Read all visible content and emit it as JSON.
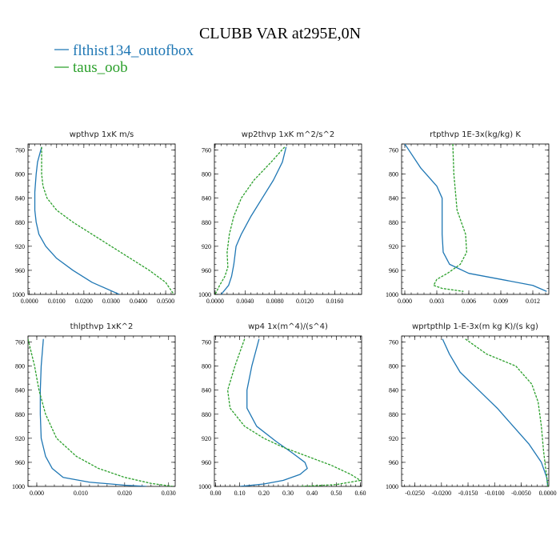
{
  "figure": {
    "title": "CLUBB VAR at295E,0N",
    "legend": [
      {
        "label": "flthist134_outofbox",
        "color": "#1f77b4",
        "dash": "solid"
      },
      {
        "label": "taus_oob",
        "color": "#2ca02c",
        "dash": "dashed"
      }
    ]
  },
  "chart_data": [
    {
      "type": "line",
      "title": "wpthvp  1xK m/s",
      "xlim": [
        -0.0005,
        0.0535
      ],
      "ylim": [
        1000,
        750
      ],
      "xticks": [
        0,
        0.01,
        0.02,
        0.03,
        0.04,
        0.05
      ],
      "xtick_labels": [
        "0.0000",
        "0.0100",
        "0.0200",
        "0.0300",
        "0.0400",
        "0.0500"
      ],
      "yticks": [
        760,
        800,
        840,
        880,
        920,
        960,
        1000
      ],
      "series": [
        {
          "name": "flthist134_outofbox",
          "points": [
            [
              0.0045,
              755
            ],
            [
              0.003,
              780
            ],
            [
              0.0025,
              800
            ],
            [
              0.002,
              830
            ],
            [
              0.002,
              860
            ],
            [
              0.0025,
              880
            ],
            [
              0.0035,
              900
            ],
            [
              0.006,
              920
            ],
            [
              0.01,
              940
            ],
            [
              0.016,
              960
            ],
            [
              0.023,
              980
            ],
            [
              0.033,
              1000
            ]
          ]
        },
        {
          "name": "taus_oob",
          "points": [
            [
              0.0045,
              755
            ],
            [
              0.0045,
              780
            ],
            [
              0.0045,
              800
            ],
            [
              0.005,
              820
            ],
            [
              0.0065,
              840
            ],
            [
              0.01,
              860
            ],
            [
              0.016,
              880
            ],
            [
              0.023,
              900
            ],
            [
              0.03,
              920
            ],
            [
              0.037,
              940
            ],
            [
              0.044,
              960
            ],
            [
              0.05,
              980
            ],
            [
              0.053,
              1000
            ]
          ]
        }
      ]
    },
    {
      "type": "line",
      "title": "wp2thvp  1xK m^2/s^2",
      "xlim": [
        -0.0001,
        0.0196
      ],
      "ylim": [
        1000,
        750
      ],
      "xticks": [
        0,
        0.004,
        0.008,
        0.012,
        0.016
      ],
      "xtick_labels": [
        "0.0000",
        "0.0040",
        "0.0080",
        "0.0120",
        "0.0160"
      ],
      "yticks": [
        760,
        800,
        840,
        880,
        920,
        960,
        1000
      ],
      "series": [
        {
          "name": "flthist134_outofbox",
          "points": [
            [
              0.0095,
              755
            ],
            [
              0.009,
              780
            ],
            [
              0.0078,
              810
            ],
            [
              0.0063,
              840
            ],
            [
              0.0048,
              870
            ],
            [
              0.0035,
              900
            ],
            [
              0.0028,
              920
            ],
            [
              0.0025,
              950
            ],
            [
              0.0022,
              970
            ],
            [
              0.0018,
              985
            ],
            [
              0.0008,
              1000
            ]
          ]
        },
        {
          "name": "taus_oob",
          "points": [
            [
              0.0093,
              755
            ],
            [
              0.0075,
              780
            ],
            [
              0.0052,
              810
            ],
            [
              0.0035,
              840
            ],
            [
              0.0025,
              870
            ],
            [
              0.0019,
              900
            ],
            [
              0.0016,
              930
            ],
            [
              0.0017,
              955
            ],
            [
              0.0013,
              970
            ],
            [
              0.0006,
              985
            ],
            [
              0.0,
              1000
            ]
          ]
        }
      ]
    },
    {
      "type": "line",
      "title": "rtpthvp  1E-3x(kg/kg) K",
      "xlim": [
        -0.0003,
        0.0135
      ],
      "ylim": [
        1000,
        750
      ],
      "xticks": [
        0,
        0.003,
        0.006,
        0.009,
        0.012
      ],
      "xtick_labels": [
        "0.000",
        "0.003",
        "0.006",
        "0.009",
        "0.012"
      ],
      "yticks": [
        760,
        800,
        840,
        880,
        920,
        960,
        1000
      ],
      "series": [
        {
          "name": "flthist134_outofbox",
          "points": [
            [
              0.0,
              750
            ],
            [
              0.0015,
              790
            ],
            [
              0.003,
              820
            ],
            [
              0.0035,
              840
            ],
            [
              0.0035,
              900
            ],
            [
              0.0036,
              930
            ],
            [
              0.0042,
              950
            ],
            [
              0.006,
              965
            ],
            [
              0.009,
              975
            ],
            [
              0.012,
              985
            ],
            [
              0.0133,
              995
            ]
          ]
        },
        {
          "name": "taus_oob",
          "points": [
            [
              0.0045,
              750
            ],
            [
              0.0046,
              800
            ],
            [
              0.0049,
              860
            ],
            [
              0.0057,
              900
            ],
            [
              0.0058,
              930
            ],
            [
              0.0052,
              950
            ],
            [
              0.004,
              965
            ],
            [
              0.003,
              975
            ],
            [
              0.0027,
              985
            ],
            [
              0.0035,
              990
            ],
            [
              0.0055,
              995
            ]
          ]
        }
      ]
    },
    {
      "type": "line",
      "title": "thlpthvp  1xK^2",
      "xlim": [
        -0.002,
        0.0315
      ],
      "ylim": [
        1000,
        750
      ],
      "xticks": [
        0,
        0.01,
        0.02,
        0.03
      ],
      "xtick_labels": [
        "0.000",
        "0.010",
        "0.020",
        "0.030"
      ],
      "yticks": [
        760,
        800,
        840,
        880,
        920,
        960,
        1000
      ],
      "series": [
        {
          "name": "flthist134_outofbox",
          "points": [
            [
              0.0015,
              755
            ],
            [
              0.001,
              800
            ],
            [
              0.0008,
              840
            ],
            [
              0.0008,
              880
            ],
            [
              0.001,
              920
            ],
            [
              0.002,
              950
            ],
            [
              0.0035,
              970
            ],
            [
              0.006,
              985
            ],
            [
              0.012,
              993
            ],
            [
              0.02,
              998
            ],
            [
              0.025,
              1000
            ]
          ]
        },
        {
          "name": "taus_oob",
          "points": [
            [
              -0.002,
              755
            ],
            [
              -0.0005,
              800
            ],
            [
              0.0005,
              840
            ],
            [
              0.002,
              880
            ],
            [
              0.0045,
              920
            ],
            [
              0.009,
              950
            ],
            [
              0.014,
              970
            ],
            [
              0.02,
              985
            ],
            [
              0.026,
              995
            ],
            [
              0.031,
              1000
            ]
          ]
        }
      ]
    },
    {
      "type": "line",
      "title": "wp4  1x(m^4)/(s^4)",
      "xlim": [
        -0.005,
        0.605
      ],
      "ylim": [
        1000,
        750
      ],
      "xticks": [
        0,
        0.1,
        0.2,
        0.3,
        0.4,
        0.5,
        0.6
      ],
      "xtick_labels": [
        "0.00",
        "0.10",
        "0.20",
        "0.30",
        "0.40",
        "0.50",
        "0.60"
      ],
      "yticks": [
        760,
        800,
        840,
        880,
        920,
        960,
        1000
      ],
      "series": [
        {
          "name": "flthist134_outofbox",
          "points": [
            [
              0.18,
              755
            ],
            [
              0.15,
              800
            ],
            [
              0.13,
              840
            ],
            [
              0.13,
              870
            ],
            [
              0.17,
              900
            ],
            [
              0.25,
              925
            ],
            [
              0.32,
              945
            ],
            [
              0.37,
              960
            ],
            [
              0.38,
              970
            ],
            [
              0.35,
              980
            ],
            [
              0.28,
              990
            ],
            [
              0.2,
              996
            ],
            [
              0.1,
              1000
            ]
          ]
        },
        {
          "name": "taus_oob",
          "points": [
            [
              0.12,
              755
            ],
            [
              0.08,
              800
            ],
            [
              0.05,
              840
            ],
            [
              0.06,
              870
            ],
            [
              0.12,
              900
            ],
            [
              0.2,
              920
            ],
            [
              0.28,
              935
            ],
            [
              0.38,
              950
            ],
            [
              0.48,
              965
            ],
            [
              0.56,
              980
            ],
            [
              0.6,
              990
            ],
            [
              0.5,
              997
            ],
            [
              0.35,
              1000
            ]
          ]
        }
      ]
    },
    {
      "type": "line",
      "title": "wprtpthlp  1-E-3x(m kg K)/(s kg)",
      "xlim": [
        -0.0275,
        0.0002
      ],
      "ylim": [
        1000,
        750
      ],
      "xticks": [
        -0.025,
        -0.02,
        -0.015,
        -0.01,
        -0.005,
        0.0
      ],
      "xtick_labels": [
        "-0.0250",
        "-0.0200",
        "-0.0150",
        "-0.0100",
        "-0.0050",
        "0.0000"
      ],
      "yticks": [
        760,
        800,
        840,
        880,
        920,
        960,
        1000
      ],
      "series": [
        {
          "name": "flthist134_outofbox",
          "points": [
            [
              -0.0198,
              755
            ],
            [
              -0.0185,
              780
            ],
            [
              -0.0165,
              810
            ],
            [
              -0.013,
              840
            ],
            [
              -0.0095,
              870
            ],
            [
              -0.0065,
              900
            ],
            [
              -0.0035,
              930
            ],
            [
              -0.0012,
              960
            ],
            [
              -0.0002,
              985
            ],
            [
              0.0,
              1000
            ]
          ]
        },
        {
          "name": "taus_oob",
          "points": [
            [
              -0.0155,
              755
            ],
            [
              -0.0115,
              780
            ],
            [
              -0.006,
              800
            ],
            [
              -0.003,
              830
            ],
            [
              -0.0018,
              860
            ],
            [
              -0.0012,
              900
            ],
            [
              -0.0008,
              940
            ],
            [
              -0.0004,
              970
            ],
            [
              -0.0001,
              990
            ],
            [
              0.0,
              1000
            ]
          ]
        }
      ]
    }
  ]
}
